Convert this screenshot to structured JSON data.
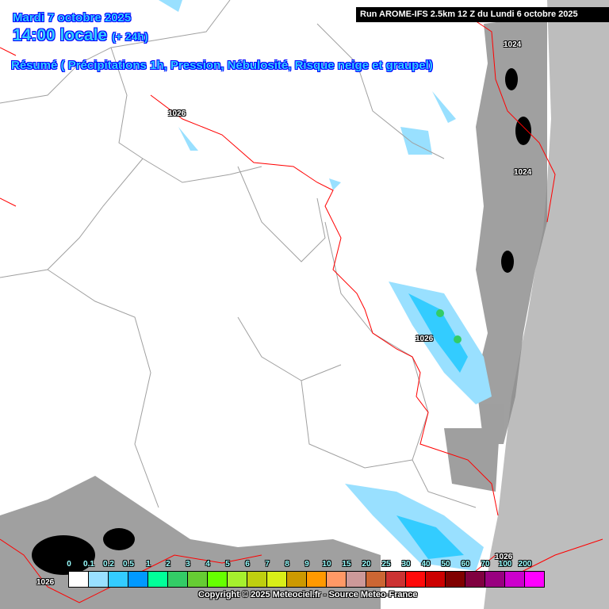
{
  "header": {
    "date": "Mardi 7 octobre 2025",
    "hour": "14:00 locale",
    "offset": "(+ 24h)",
    "title": "Résumé ( Précipitations 1h, Pression, Nébulosité, Risque neige et graupel)",
    "run": "Run AROME-IFS 2.5km 12 Z du Lundi 6 octobre 2025"
  },
  "pressure_labels": [
    "1024",
    "1026",
    "1024",
    "1026",
    "1026",
    "1026"
  ],
  "legend": {
    "labels": [
      "0",
      "0.1",
      "0.2",
      "0.5",
      "1",
      "2",
      "3",
      "4",
      "5",
      "6",
      "7",
      "8",
      "9",
      "10",
      "15",
      "20",
      "25",
      "30",
      "40",
      "50",
      "60",
      "70",
      "100",
      "200"
    ],
    "colors": [
      "#ffffff",
      "#99e0ff",
      "#33ccff",
      "#0099ff",
      "#00ff99",
      "#33cc66",
      "#66cc33",
      "#66ff00",
      "#a6f02e",
      "#bfcf0f",
      "#d9ee18",
      "#cc9900",
      "#ff9900",
      "#ff9966",
      "#cc9999",
      "#cc6633",
      "#cc3333",
      "#ff0a0a",
      "#cc0000",
      "#800000",
      "#800040",
      "#990080",
      "#cc00cc",
      "#ff00ff"
    ]
  },
  "colors": {
    "sea": "#bdbdbd",
    "border": "#ff0000",
    "admin": "#a0a0a0",
    "rain": "#99e0ff"
  },
  "copyright": "Copyright © 2025 Meteociel.fr - Source Meteo-France"
}
